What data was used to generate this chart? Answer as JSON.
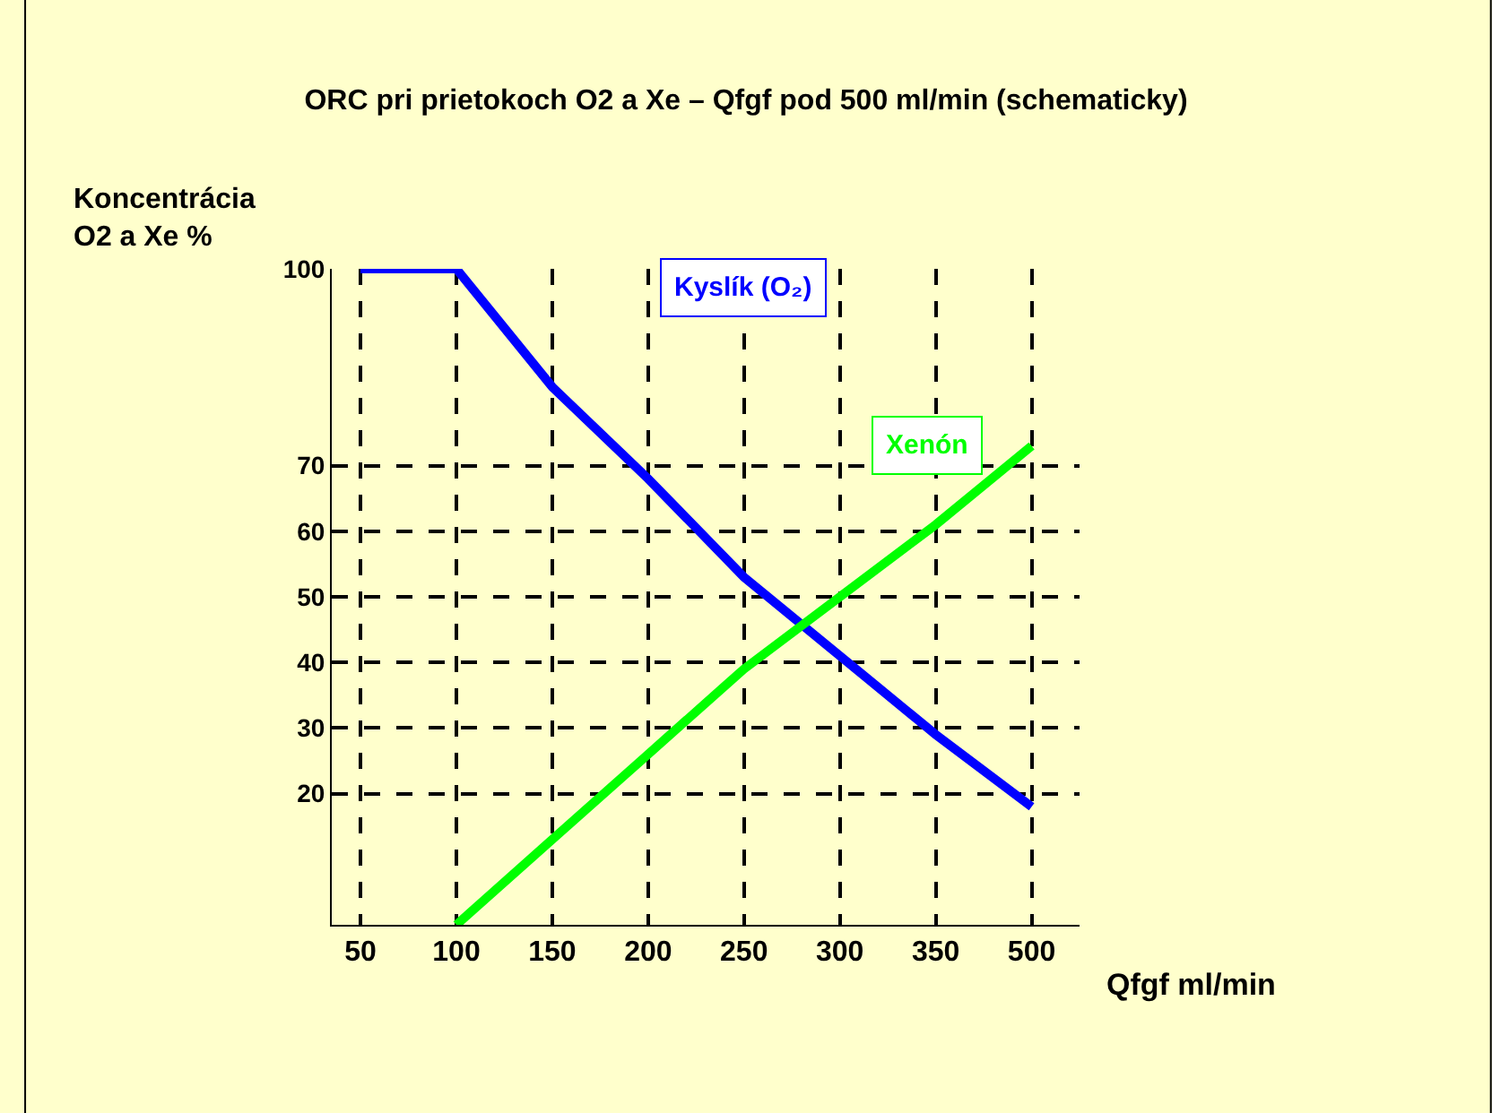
{
  "chart_data": {
    "type": "line",
    "title": "ORC pri prietokoch O2 a Xe – Qfgf pod 500 ml/min (schematicky)",
    "ylabel": "Koncentrácia\nO2 a Xe %",
    "xlabel": "Qfgf ml/min",
    "categories": [
      "50",
      "100",
      "150",
      "200",
      "250",
      "300",
      "350",
      "500"
    ],
    "series": [
      {
        "name": "Kyslík (O₂)",
        "color": "#0000ff",
        "values": [
          100,
          100,
          82,
          68,
          53,
          41,
          29,
          18
        ]
      },
      {
        "name": "Xenón",
        "color": "#00ff00",
        "values": [
          null,
          0,
          13,
          26,
          39,
          50,
          61,
          73
        ]
      }
    ],
    "ylim": [
      0,
      100
    ],
    "yticks": [
      20,
      30,
      40,
      50,
      60,
      70,
      100
    ],
    "grid": true,
    "legend": false,
    "marker": "none",
    "line_style": "solid"
  }
}
